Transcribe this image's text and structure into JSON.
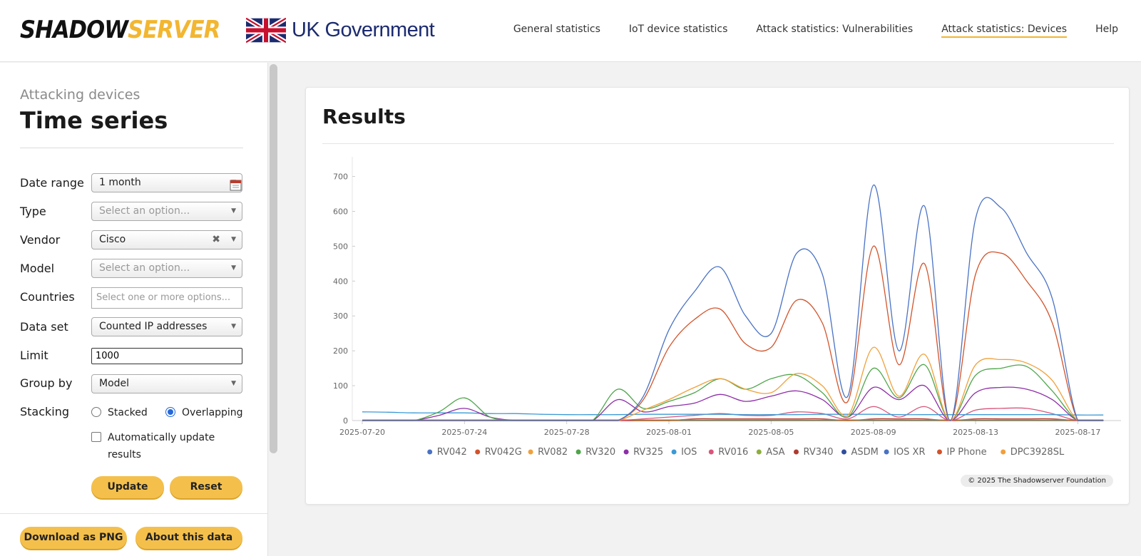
{
  "header": {
    "logo": {
      "text_a": "SHADOW",
      "text_b": "SERVER",
      "icon": "shadowserver-logo-icon"
    },
    "gov": {
      "text": "UK Government",
      "icon": "union-flag-icon"
    },
    "nav": [
      {
        "label": "General statistics",
        "active": false
      },
      {
        "label": "IoT device statistics",
        "active": false
      },
      {
        "label": "Attack statistics: Vulnerabilities",
        "active": false
      },
      {
        "label": "Attack statistics: Devices",
        "active": true
      },
      {
        "label": "Help",
        "active": false
      }
    ]
  },
  "sidebar": {
    "subtitle": "Attacking devices",
    "title": "Time series",
    "date_range": {
      "label": "Date range",
      "value": "1 month",
      "icon": "calendar-icon"
    },
    "type": {
      "label": "Type",
      "placeholder": "Select an option..."
    },
    "vendor": {
      "label": "Vendor",
      "value": "Cisco"
    },
    "model": {
      "label": "Model",
      "placeholder": "Select an option..."
    },
    "countries": {
      "label": "Countries",
      "placeholder": "Select one or more options..."
    },
    "data_set": {
      "label": "Data set",
      "value": "Counted IP addresses"
    },
    "limit": {
      "label": "Limit",
      "value": "1000"
    },
    "group_by": {
      "label": "Group by",
      "value": "Model"
    },
    "stacking": {
      "label": "Stacking",
      "options": [
        "Stacked",
        "Overlapping"
      ],
      "selected": "Overlapping"
    },
    "auto_update": {
      "label_line1": "Automatically update",
      "label_line2": "results",
      "checked": false
    },
    "buttons": {
      "update": "Update",
      "reset": "Reset",
      "download": "Download as PNG",
      "about": "About this data"
    }
  },
  "results": {
    "title": "Results",
    "copyright": "© 2025 The Shadowserver Foundation"
  },
  "chart_data": {
    "type": "line",
    "x": [
      "2025-07-20",
      "2025-07-21",
      "2025-07-22",
      "2025-07-23",
      "2025-07-24",
      "2025-07-25",
      "2025-07-26",
      "2025-07-27",
      "2025-07-28",
      "2025-07-29",
      "2025-07-30",
      "2025-07-31",
      "2025-08-01",
      "2025-08-02",
      "2025-08-03",
      "2025-08-04",
      "2025-08-05",
      "2025-08-06",
      "2025-08-07",
      "2025-08-08",
      "2025-08-09",
      "2025-08-10",
      "2025-08-11",
      "2025-08-12",
      "2025-08-13",
      "2025-08-14",
      "2025-08-15",
      "2025-08-16",
      "2025-08-17",
      "2025-08-18"
    ],
    "x_ticks": [
      "2025-07-20",
      "2025-07-24",
      "2025-07-28",
      "2025-08-01",
      "2025-08-05",
      "2025-08-09",
      "2025-08-13",
      "2025-08-17"
    ],
    "ylim": [
      0,
      740
    ],
    "y_ticks": [
      0,
      100,
      200,
      300,
      400,
      500,
      600,
      700
    ],
    "legend_position": "bottom",
    "series": [
      {
        "name": "RV042",
        "color": "#4a72c4",
        "values": [
          0,
          0,
          0,
          0,
          0,
          0,
          0,
          0,
          0,
          0,
          0,
          70,
          260,
          370,
          440,
          300,
          250,
          480,
          420,
          70,
          675,
          200,
          615,
          0,
          580,
          610,
          480,
          350,
          0,
          0
        ]
      },
      {
        "name": "RV042G",
        "color": "#d2532b",
        "values": [
          0,
          0,
          0,
          0,
          0,
          0,
          0,
          0,
          0,
          0,
          0,
          60,
          210,
          290,
          320,
          220,
          210,
          345,
          280,
          55,
          500,
          160,
          450,
          0,
          420,
          480,
          400,
          280,
          0,
          0
        ]
      },
      {
        "name": "RV082",
        "color": "#f0a03a",
        "values": [
          0,
          0,
          0,
          0,
          0,
          0,
          0,
          0,
          0,
          0,
          0,
          30,
          60,
          95,
          120,
          90,
          80,
          135,
          100,
          15,
          210,
          70,
          190,
          0,
          160,
          175,
          165,
          115,
          0,
          0
        ]
      },
      {
        "name": "RV320",
        "color": "#4ea54a",
        "values": [
          0,
          0,
          0,
          25,
          65,
          10,
          0,
          0,
          0,
          0,
          90,
          35,
          55,
          80,
          120,
          90,
          120,
          130,
          80,
          10,
          150,
          65,
          160,
          0,
          130,
          150,
          155,
          85,
          0,
          0
        ]
      },
      {
        "name": "RV325",
        "color": "#8e2ea8",
        "values": [
          0,
          0,
          0,
          15,
          35,
          10,
          0,
          0,
          0,
          0,
          60,
          25,
          40,
          50,
          75,
          55,
          70,
          85,
          60,
          10,
          95,
          60,
          100,
          0,
          80,
          95,
          90,
          60,
          0,
          0
        ]
      },
      {
        "name": "IOS",
        "color": "#3b9ad6",
        "values": [
          25,
          24,
          22,
          22,
          22,
          20,
          20,
          18,
          17,
          17,
          17,
          18,
          18,
          18,
          18,
          17,
          17,
          17,
          18,
          18,
          18,
          17,
          17,
          17,
          17,
          17,
          17,
          17,
          16,
          16
        ]
      },
      {
        "name": "RV016",
        "color": "#d8557a",
        "values": [
          0,
          0,
          0,
          0,
          0,
          0,
          0,
          0,
          0,
          0,
          0,
          5,
          10,
          15,
          20,
          15,
          15,
          25,
          20,
          5,
          40,
          10,
          40,
          0,
          30,
          35,
          35,
          20,
          0,
          0
        ]
      },
      {
        "name": "ASA",
        "color": "#8cae3c",
        "values": [
          2,
          2,
          2,
          2,
          2,
          2,
          2,
          2,
          2,
          2,
          2,
          2,
          2,
          2,
          2,
          2,
          2,
          2,
          2,
          2,
          2,
          2,
          2,
          2,
          2,
          2,
          2,
          2,
          2,
          2
        ]
      },
      {
        "name": "RV340",
        "color": "#b03a2e",
        "values": [
          0,
          0,
          0,
          0,
          0,
          0,
          0,
          0,
          0,
          0,
          0,
          0,
          0,
          5,
          5,
          5,
          5,
          5,
          5,
          0,
          5,
          5,
          5,
          0,
          5,
          5,
          5,
          5,
          0,
          0
        ]
      },
      {
        "name": "ASDM",
        "color": "#2f4e9e",
        "values": [
          1,
          1,
          1,
          1,
          1,
          1,
          1,
          1,
          1,
          1,
          1,
          1,
          1,
          1,
          1,
          1,
          1,
          1,
          1,
          1,
          1,
          1,
          1,
          1,
          1,
          1,
          1,
          1,
          1,
          1
        ]
      },
      {
        "name": "IOS XR",
        "color": "#4a72c4",
        "values": [
          1,
          1,
          1,
          1,
          1,
          1,
          1,
          1,
          1,
          1,
          1,
          1,
          1,
          1,
          1,
          1,
          1,
          1,
          1,
          1,
          1,
          1,
          1,
          1,
          1,
          1,
          1,
          1,
          1,
          1
        ]
      },
      {
        "name": "IP Phone",
        "color": "#d2532b",
        "values": [
          0,
          0,
          0,
          0,
          0,
          0,
          0,
          0,
          0,
          0,
          0,
          0,
          0,
          0,
          0,
          0,
          0,
          0,
          0,
          0,
          0,
          0,
          0,
          0,
          0,
          0,
          0,
          0,
          0,
          0
        ]
      },
      {
        "name": "DPC3928SL",
        "color": "#f0a03a",
        "values": [
          0,
          0,
          0,
          0,
          0,
          0,
          0,
          0,
          0,
          0,
          0,
          0,
          0,
          0,
          0,
          0,
          0,
          0,
          0,
          0,
          0,
          0,
          0,
          0,
          0,
          0,
          0,
          0,
          0,
          0
        ]
      }
    ]
  }
}
